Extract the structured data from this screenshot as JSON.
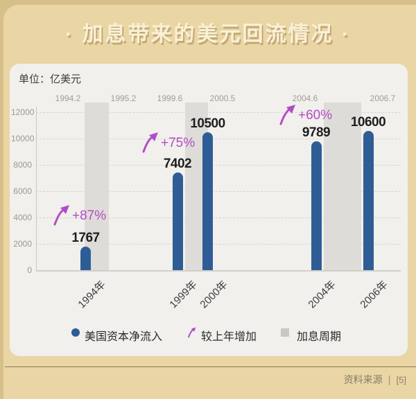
{
  "title": "· 加息带来的美元回流情况 ·",
  "unit_label": "单位：亿美元",
  "legend": [
    {
      "icon": "dot",
      "label": "美国资本净流入"
    },
    {
      "icon": "arrow",
      "label": "较上年增加"
    },
    {
      "icon": "band",
      "label": "加息周期"
    }
  ],
  "footer": {
    "source_label": "资料来源",
    "separator": "|",
    "source_ref": "[5]"
  },
  "colors": {
    "background": "#d7bf8a",
    "panel": "#ead6a5",
    "card": "#f1f0ed",
    "title_text": "#f9f1d7",
    "bar_blue": "#2e5d96",
    "band_gray": "#dedcd8",
    "growth_purple": "#b34cc4",
    "value_text": "#1e1e1e"
  },
  "chart_data": {
    "type": "bar",
    "title": "加息带来的美元回流情况",
    "unit": "亿美元",
    "categories": [
      "1994年",
      "1999年",
      "2000年",
      "2004年",
      "2006年"
    ],
    "values": [
      1767,
      7402,
      10500,
      9789,
      10600
    ],
    "series_name": "美国资本净流入",
    "growth_annotations": [
      {
        "label": "+87%",
        "applies_to": "1994年"
      },
      {
        "label": "+75%",
        "applies_to": "1999年"
      },
      {
        "label": "+60%",
        "applies_to": "2004年"
      }
    ],
    "rate_hike_periods": [
      {
        "start": "1994.2",
        "end": "1995.2"
      },
      {
        "start": "1999.6",
        "end": "2000.5"
      },
      {
        "start": "2004.6",
        "end": "2006.7"
      }
    ],
    "ylim": [
      0,
      12000
    ],
    "yticks": [
      0,
      2000,
      4000,
      6000,
      8000,
      10000,
      12000
    ],
    "grid": true,
    "legend_position": "bottom"
  }
}
